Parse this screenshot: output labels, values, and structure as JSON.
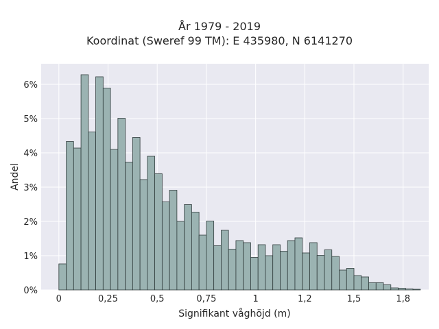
{
  "chart_data": {
    "type": "bar",
    "title": "År 1979 - 2019",
    "subtitle": "Koordinat (Sweref 99 TM): E 435980, N 6141270",
    "xlabel": "Signifikant våghöjd (m)",
    "ylabel": "Andel",
    "xlim": [
      -0.09,
      1.88
    ],
    "ylim": [
      0,
      6.6
    ],
    "grid": true,
    "bin_width": 0.0375,
    "bin_start": 0,
    "x_ticks": [
      0,
      0.25,
      0.5,
      0.75,
      1,
      1.25,
      1.5,
      1.75
    ],
    "x_tick_labels": [
      "0",
      "0,25",
      "0,5",
      "0,75",
      "1",
      "1,2",
      "1,5",
      "1,8"
    ],
    "y_ticks": [
      0,
      1,
      2,
      3,
      4,
      5,
      6
    ],
    "y_tick_labels": [
      "0%",
      "1%",
      "2%",
      "3%",
      "4%",
      "5%",
      "6%"
    ],
    "values": [
      0.76,
      4.33,
      4.14,
      6.28,
      4.61,
      6.22,
      5.89,
      4.1,
      5.01,
      3.73,
      4.45,
      3.22,
      3.9,
      3.39,
      2.57,
      2.91,
      2.0,
      2.49,
      2.27,
      1.6,
      2.01,
      1.29,
      1.74,
      1.19,
      1.44,
      1.38,
      0.95,
      1.32,
      1.0,
      1.32,
      1.13,
      1.44,
      1.52,
      1.08,
      1.38,
      1.01,
      1.17,
      0.98,
      0.58,
      0.63,
      0.42,
      0.38,
      0.21,
      0.21,
      0.15,
      0.06,
      0.05,
      0.03,
      0.02
    ],
    "colors": {
      "bar_fill": "#9bb3b2",
      "bar_stroke": "#2f3b3b",
      "plot_bg": "#e9e9f1",
      "grid": "#ffffff"
    }
  }
}
